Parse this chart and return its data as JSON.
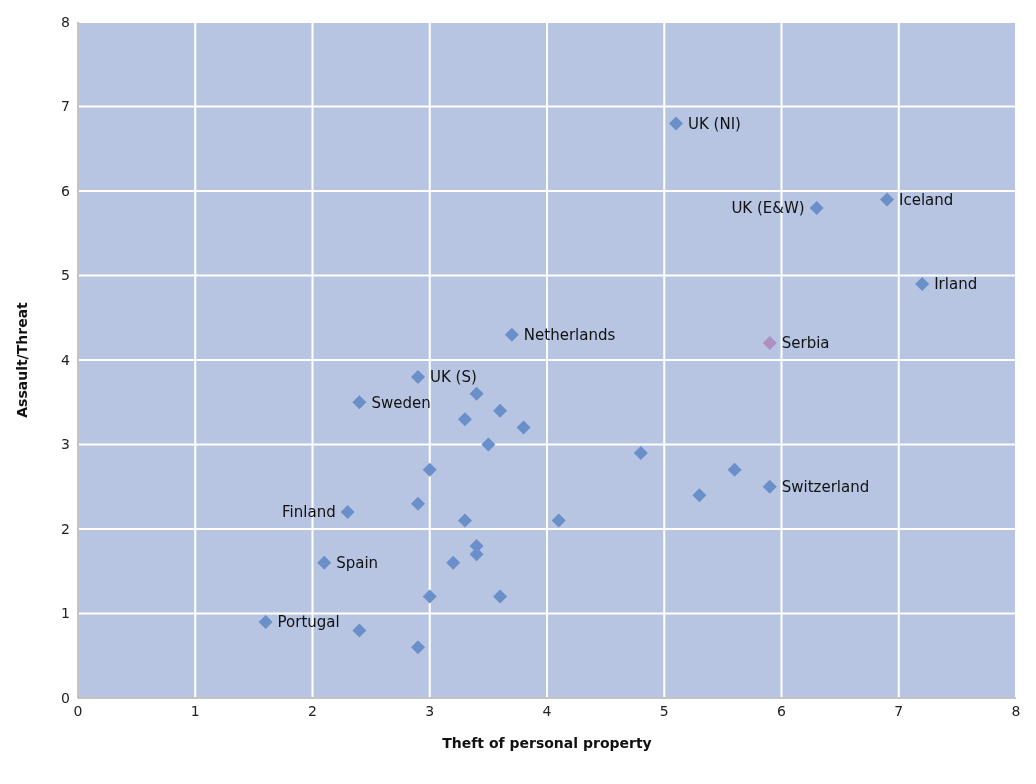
{
  "chart_data": {
    "type": "scatter",
    "xlabel": "Theft of personal property",
    "ylabel": "Assault/Threat",
    "xlim": [
      0,
      8
    ],
    "xticks": [
      0,
      1,
      2,
      3,
      4,
      5,
      6,
      7,
      8
    ],
    "ylim": [
      0,
      8
    ],
    "yticks": [
      0,
      1,
      2,
      3,
      4,
      5,
      6,
      7,
      8
    ],
    "grid": true,
    "marker": "diamond",
    "series": [
      {
        "x": [
          5.1,
          6.9,
          6.3,
          7.2,
          3.7,
          5.9,
          2.9,
          2.4,
          3.4,
          3.6,
          3.3,
          3.8,
          3.5,
          4.8,
          3.0,
          5.6,
          5.3,
          5.9,
          2.9,
          2.3,
          3.3,
          4.1,
          3.4,
          3.4,
          2.1,
          3.2,
          3.0,
          3.6,
          1.6,
          2.4,
          2.9
        ],
        "values": [
          6.8,
          5.9,
          5.8,
          4.9,
          4.3,
          4.2,
          3.8,
          3.5,
          3.6,
          3.4,
          3.3,
          3.2,
          3.0,
          2.9,
          2.7,
          2.7,
          2.4,
          2.5,
          2.3,
          2.2,
          2.1,
          2.1,
          1.8,
          1.7,
          1.6,
          1.6,
          1.2,
          1.2,
          0.9,
          0.8,
          0.6
        ],
        "colors": [
          "#6a8fc9",
          "#6a8fc9",
          "#6a8fc9",
          "#6a8fc9",
          "#6a8fc9",
          "#ad8fc2",
          "#6a8fc9",
          "#6a8fc9",
          "#6a8fc9",
          "#6a8fc9",
          "#6a8fc9",
          "#6a8fc9",
          "#6a8fc9",
          "#6a8fc9",
          "#6a8fc9",
          "#6a8fc9",
          "#6a8fc9",
          "#6a8fc9",
          "#6a8fc9",
          "#6a8fc9",
          "#6a8fc9",
          "#6a8fc9",
          "#6a8fc9",
          "#6a8fc9",
          "#6a8fc9",
          "#6a8fc9",
          "#6a8fc9",
          "#6a8fc9",
          "#6a8fc9",
          "#6a8fc9",
          "#6a8fc9"
        ]
      }
    ],
    "annotations": [
      {
        "text": "UK (NI)",
        "x": 5.1,
        "y": 6.8
      },
      {
        "text": "Iceland",
        "x": 6.9,
        "y": 5.9
      },
      {
        "text": "UK (E&W)",
        "x": 6.3,
        "y": 5.8
      },
      {
        "text": "Irland",
        "x": 7.2,
        "y": 4.9
      },
      {
        "text": "Netherlands",
        "x": 3.7,
        "y": 4.3
      },
      {
        "text": "Serbia",
        "x": 5.9,
        "y": 4.2
      },
      {
        "text": "UK (S)",
        "x": 2.9,
        "y": 3.8
      },
      {
        "text": "Sweden",
        "x": 2.4,
        "y": 3.5
      },
      {
        "text": "Switzerland",
        "x": 5.9,
        "y": 2.5
      },
      {
        "text": "Finland",
        "x": 2.3,
        "y": 2.2
      },
      {
        "text": "Spain",
        "x": 2.1,
        "y": 1.6
      },
      {
        "text": "Portugal",
        "x": 1.6,
        "y": 0.9
      }
    ]
  }
}
